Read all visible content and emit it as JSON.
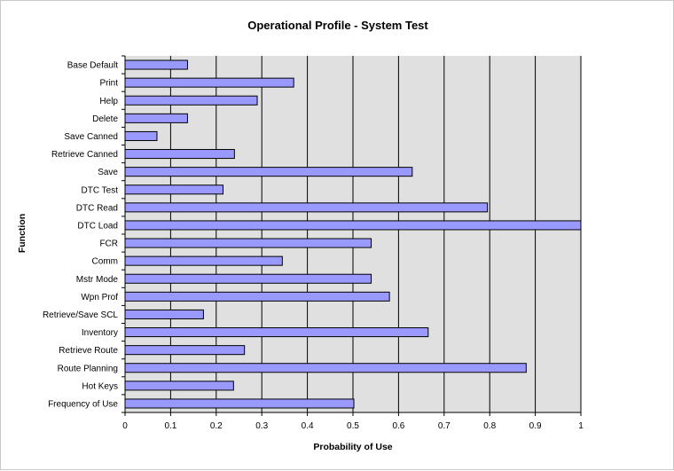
{
  "chart_data": {
    "type": "bar",
    "orientation": "horizontal",
    "title": "Operational Profile - System Test",
    "xlabel": "Probability of Use",
    "ylabel": "Function",
    "xlim": [
      0,
      1
    ],
    "x_ticks": [
      "0",
      "0.1",
      "0.2",
      "0.3",
      "0.4",
      "0.5",
      "0.6",
      "0.7",
      "0.8",
      "0.9",
      "1"
    ],
    "grid": "vertical",
    "legend": "none",
    "colors": {
      "plot_bg": "#e0e0e0",
      "bar_fill": "#9999ff",
      "bar_stroke": "#000000",
      "grid": "#000000"
    },
    "categories": [
      "Base Default",
      "Print",
      "Help",
      "Delete",
      "Save Canned",
      "Retrieve Canned",
      "Save",
      "DTC Test",
      "DTC Read",
      "DTC Load",
      "FCR",
      "Comm",
      "Mstr Mode",
      "Wpn Prof",
      "Retrieve/Save SCL",
      "Inventory",
      "Retrieve Route",
      "Route Planning",
      "Hot Keys",
      "Frequency of Use"
    ],
    "values": [
      0.137,
      0.37,
      0.29,
      0.137,
      0.07,
      0.24,
      0.63,
      0.215,
      0.795,
      1.0,
      0.54,
      0.345,
      0.54,
      0.58,
      0.172,
      0.665,
      0.262,
      0.88,
      0.238,
      0.502
    ]
  }
}
